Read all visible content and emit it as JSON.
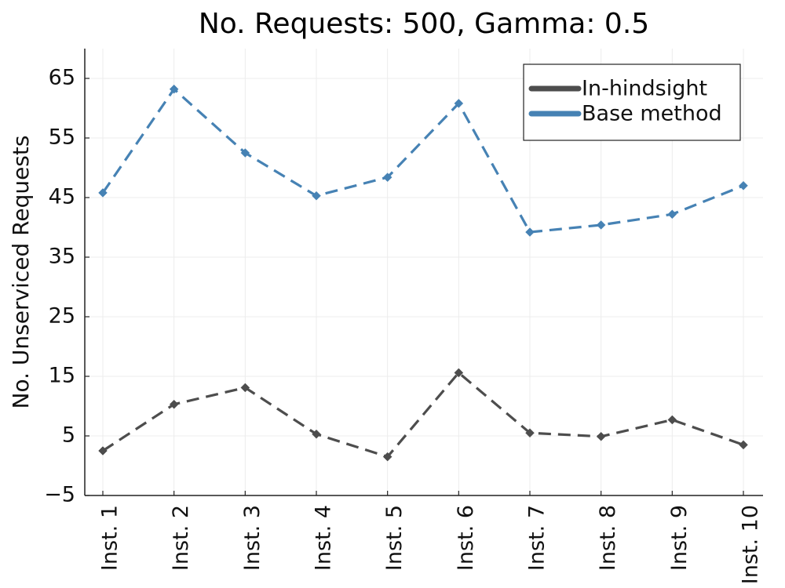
{
  "chart_data": {
    "type": "line",
    "title": "No. Requests: 500, Gamma: 0.5",
    "xlabel": "",
    "ylabel": "No. Unserviced Requests",
    "categories": [
      "Inst. 1",
      "Inst. 2",
      "Inst. 3",
      "Inst. 4",
      "Inst. 5",
      "Inst. 6",
      "Inst. 7",
      "Inst. 8",
      "Inst. 9",
      "Inst. 10"
    ],
    "ylim": [
      -5,
      70
    ],
    "yticks": [
      -5,
      5,
      15,
      25,
      35,
      45,
      55,
      65
    ],
    "ytick_labels": [
      "−5",
      "5",
      "15",
      "25",
      "35",
      "45",
      "55",
      "65"
    ],
    "grid": true,
    "legend_position": "top-right",
    "series": [
      {
        "name": "In-hindsight",
        "color": "#4d4d4d",
        "values": [
          2.5,
          10.3,
          13.1,
          5.3,
          1.5,
          15.6,
          5.5,
          4.9,
          7.7,
          3.5
        ]
      },
      {
        "name": "Base method",
        "color": "#4682b4",
        "values": [
          45.8,
          63.2,
          52.5,
          45.3,
          48.4,
          60.8,
          39.2,
          40.4,
          42.2,
          47.0
        ]
      }
    ]
  }
}
